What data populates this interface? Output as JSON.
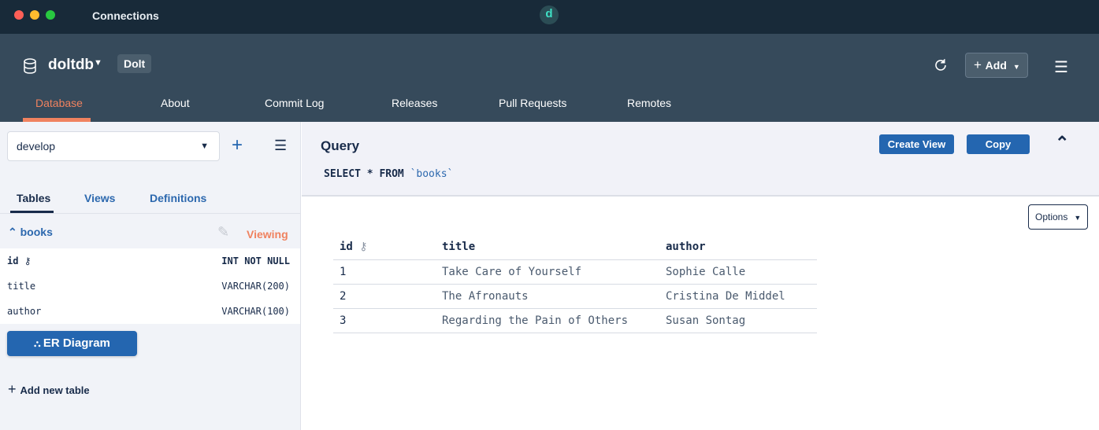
{
  "window": {
    "title": "Connections",
    "logo": "d"
  },
  "header": {
    "db_name": "doltdb",
    "badge": "Dolt",
    "add_label": "Add",
    "tabs": [
      {
        "label": "Database"
      },
      {
        "label": "About"
      },
      {
        "label": "Commit Log"
      },
      {
        "label": "Releases"
      },
      {
        "label": "Pull Requests"
      },
      {
        "label": "Remotes"
      }
    ]
  },
  "sidebar": {
    "branch": "develop",
    "tabs": [
      {
        "label": "Tables"
      },
      {
        "label": "Views"
      },
      {
        "label": "Definitions"
      }
    ],
    "table": {
      "name": "books",
      "status": "Viewing",
      "columns": [
        {
          "name": "id",
          "type": "INT NOT NULL"
        },
        {
          "name": "title",
          "type": "VARCHAR(200)"
        },
        {
          "name": "author",
          "type": "VARCHAR(100)"
        }
      ]
    },
    "er_label": "ER Diagram",
    "add_table_label": "Add new table"
  },
  "query": {
    "title": "Query",
    "sql_keywords": "SELECT * FROM",
    "sql_table": "`books`",
    "create_view": "Create View",
    "copy": "Copy"
  },
  "results": {
    "options_label": "Options",
    "columns": [
      "id",
      "title",
      "author"
    ],
    "rows": [
      [
        "1",
        "Take Care of Yourself",
        "Sophie Calle"
      ],
      [
        "2",
        "The Afronauts",
        "Cristina De Middel"
      ],
      [
        "3",
        "Regarding the Pain of Others",
        "Susan Sontag"
      ]
    ]
  },
  "colors": {
    "accent": "#f0825f",
    "primary": "#2466b0",
    "header": "#364a5b",
    "titlebar": "#182a39"
  }
}
